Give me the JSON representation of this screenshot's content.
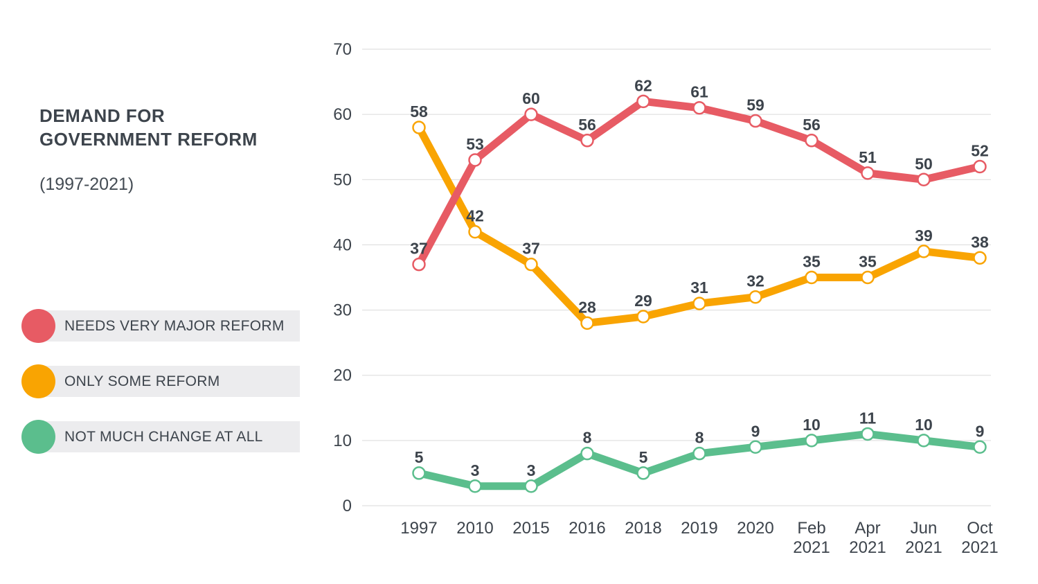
{
  "header": {
    "title_line1": "DEMAND FOR",
    "title_line2": "GOVERNMENT REFORM",
    "subtitle": "(1997-2021)"
  },
  "colors": {
    "text_dark": "#3D444C",
    "gridline": "#DADADA",
    "legend_pill_bg": "#ECECEE",
    "background": "#FFFFFF",
    "marker_fill": "#FFFFFF"
  },
  "chart_data": {
    "type": "line",
    "title": "DEMAND FOR GOVERNMENT REFORM (1997-2021)",
    "categories": [
      "1997",
      "2010",
      "2015",
      "2016",
      "2018",
      "2019",
      "2020",
      "Feb\n2021",
      "Apr\n2021",
      "Jun\n2021",
      "Oct\n2021"
    ],
    "series": [
      {
        "name": "NEEDS VERY MAJOR REFORM",
        "color": "#E75B64",
        "values": [
          37,
          53,
          60,
          56,
          62,
          61,
          59,
          56,
          51,
          50,
          52
        ]
      },
      {
        "name": "ONLY SOME REFORM",
        "color": "#F9A402",
        "values": [
          58,
          42,
          37,
          28,
          29,
          31,
          32,
          35,
          35,
          39,
          38
        ]
      },
      {
        "name": "NOT MUCH CHANGE AT ALL",
        "color": "#5BBE8D",
        "values": [
          5,
          3,
          3,
          8,
          5,
          8,
          9,
          10,
          11,
          10,
          9
        ]
      }
    ],
    "yticks": [
      0,
      10,
      20,
      30,
      40,
      50,
      60,
      70
    ],
    "ylim": [
      0,
      70
    ],
    "xlabel": "",
    "ylabel": "",
    "grid": "horizontal",
    "legend_position": "left",
    "data_labels": true
  }
}
